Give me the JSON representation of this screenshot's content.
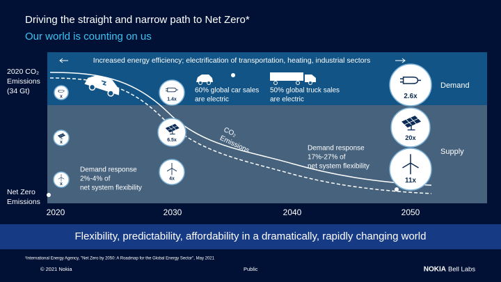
{
  "title": "Driving the straight and narrow path to Net Zero*",
  "subtitle": "Our world is counting on us",
  "top_banner": "Increased energy efficiency; electrification of transportation, heating, industrial sectors",
  "start_label": [
    "2020 CO₂",
    "Emissions",
    "(34 Gt)"
  ],
  "end_label": [
    "Net Zero",
    "Emissions"
  ],
  "rows": [
    "Demand",
    "Supply"
  ],
  "years": [
    "2020",
    "2030",
    "2040",
    "2050"
  ],
  "curve_label": [
    "CO₂",
    "Emissions"
  ],
  "circles": [
    {
      "label": "x"
    },
    {
      "label": "x"
    },
    {
      "label": "x"
    },
    {
      "label": "1.4x"
    },
    {
      "label": "6.5x"
    },
    {
      "label": "4x"
    },
    {
      "label": "2.6x"
    },
    {
      "label": "20x"
    },
    {
      "label": "11x"
    }
  ],
  "callouts": [
    {
      "lines": [
        "60% global car sales",
        "are electric"
      ]
    },
    {
      "lines": [
        "50% global truck sales",
        "are electric"
      ]
    },
    {
      "lines": [
        "Demand response",
        "2%-4% of",
        "net system flexibility"
      ]
    },
    {
      "lines": [
        "Demand response",
        "17%-27% of",
        "net system flexibility"
      ]
    }
  ],
  "tagline": "Flexibility, predictability, affordability in a dramatically, rapidly changing world",
  "footnote": "¹International Energy Agency, \"Net Zero by 2050: A Roadmap for the Global Energy Sector\", May 2021",
  "copyright": "© 2021 Nokia",
  "classification": "Public",
  "logo": "NOKIA",
  "logo_suffix": "Bell Labs"
}
